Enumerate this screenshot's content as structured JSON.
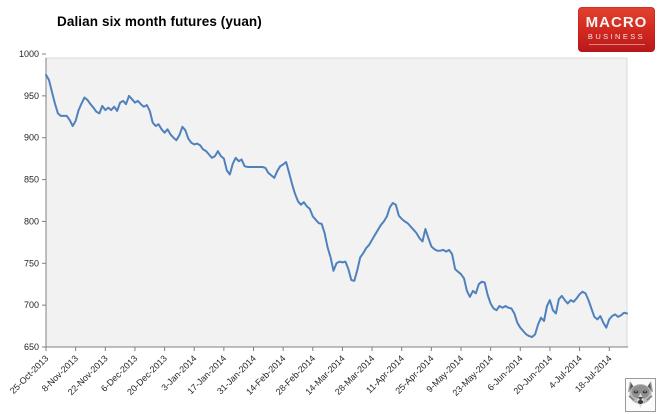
{
  "page": {
    "title": "Dalian six month futures (yuan)"
  },
  "logo": {
    "line1": "MACRO",
    "line2": "BUSINESS",
    "bg_color_top": "#e2422f",
    "bg_color_bottom": "#b8181c",
    "text_color": "#ffffff"
  },
  "icons": {
    "bottom_right": "wolf-mascot-icon"
  },
  "chart_data": {
    "type": "line",
    "title": "Dalian six month futures (yuan)",
    "xlabel": "",
    "ylabel": "",
    "ylim": [
      650,
      1000
    ],
    "yticks": [
      1000,
      950,
      900,
      850,
      800,
      750,
      700,
      650
    ],
    "grid": false,
    "legend_position": "none",
    "plot_bg": "#f2f2f2",
    "plot_border": "#d9d9d9",
    "axis_color": "#808080",
    "tick_label_color": "#262626",
    "x_frequency": "daily (trading days)",
    "xtick_every": 10,
    "xtick_labels": [
      "25-Oct-2013",
      "8-Nov-2013",
      "22-Nov-2013",
      "6-Dec-2013",
      "20-Dec-2013",
      "3-Jan-2014",
      "17-Jan-2014",
      "31-Jan-2014",
      "14-Feb-2014",
      "28-Feb-2014",
      "14-Mar-2014",
      "28-Mar-2014",
      "11-Apr-2014",
      "25-Apr-2014",
      "9-May-2014",
      "23-May-2014",
      "6-Jun-2014",
      "20-Jun-2014",
      "4-Jul-2014",
      "18-Jul-2014"
    ],
    "series": [
      {
        "name": "Dalian six month futures (yuan)",
        "color": "#4f81bd",
        "values": [
          975,
          969,
          955,
          941,
          929,
          926,
          926,
          926,
          921,
          914,
          920,
          933,
          941,
          948,
          945,
          940,
          936,
          931,
          929,
          938,
          933,
          936,
          933,
          937,
          932,
          942,
          944,
          940,
          950,
          946,
          942,
          944,
          940,
          937,
          939,
          932,
          918,
          914,
          916,
          910,
          906,
          910,
          904,
          900,
          897,
          903,
          913,
          909,
          899,
          894,
          892,
          893,
          891,
          886,
          884,
          880,
          876,
          878,
          884,
          878,
          875,
          861,
          856,
          869,
          876,
          872,
          874,
          866,
          865,
          865,
          865,
          865,
          865,
          865,
          864,
          858,
          855,
          852,
          860,
          866,
          868,
          871,
          858,
          845,
          833,
          824,
          820,
          823,
          818,
          815,
          806,
          802,
          798,
          797,
          786,
          769,
          757,
          741,
          750,
          752,
          751,
          752,
          743,
          730,
          729,
          742,
          757,
          762,
          768,
          772,
          778,
          784,
          790,
          796,
          800,
          806,
          817,
          822,
          820,
          807,
          803,
          800,
          798,
          794,
          790,
          786,
          780,
          776,
          791,
          780,
          770,
          767,
          765,
          765,
          766,
          764,
          766,
          761,
          743,
          740,
          737,
          732,
          717,
          710,
          717,
          714,
          725,
          728,
          727,
          712,
          702,
          696,
          694,
          699,
          697,
          699,
          697,
          696,
          690,
          679,
          673,
          669,
          665,
          663,
          662,
          665,
          677,
          685,
          681,
          699,
          706,
          694,
          690,
          707,
          711,
          706,
          702,
          706,
          704,
          708,
          713,
          716,
          714,
          706,
          696,
          686,
          683,
          687,
          679,
          673,
          683,
          687,
          689,
          686,
          688,
          691,
          690
        ]
      }
    ]
  }
}
